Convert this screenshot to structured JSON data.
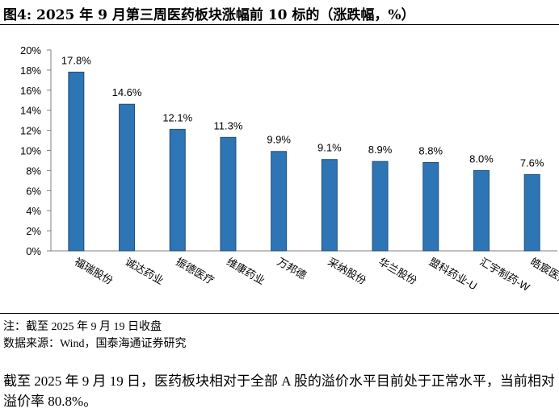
{
  "title": "图4:  2025 年 9 月第三周医药板块涨幅前 10 标的（涨跌幅，%）",
  "chart_data": {
    "type": "bar",
    "categories": [
      "福瑞股份",
      "诚达药业",
      "振德医疗",
      "维康药业",
      "万邦德",
      "采纳股份",
      "华兰股份",
      "盟科药业-U",
      "汇宇制药-W",
      "皓宸医疗"
    ],
    "values": [
      17.8,
      14.6,
      12.1,
      11.3,
      9.9,
      9.1,
      8.9,
      8.8,
      8.0,
      7.6
    ],
    "value_labels": [
      "17.8%",
      "14.6%",
      "12.1%",
      "11.3%",
      "9.9%",
      "9.1%",
      "8.9%",
      "8.8%",
      "8.0%",
      "7.6%"
    ],
    "color": "#2e75b6",
    "ylim": [
      0,
      20
    ],
    "yticks": [
      {
        "value": 0,
        "label": "0%"
      },
      {
        "value": 2,
        "label": "2%"
      },
      {
        "value": 4,
        "label": "4%"
      },
      {
        "value": 6,
        "label": "6%"
      },
      {
        "value": 8,
        "label": "8%"
      },
      {
        "value": 10,
        "label": "10%"
      },
      {
        "value": 12,
        "label": "12%"
      },
      {
        "value": 14,
        "label": "14%"
      },
      {
        "value": 16,
        "label": "16%"
      },
      {
        "value": 18,
        "label": "18%"
      },
      {
        "value": 20,
        "label": "20%"
      }
    ],
    "grid": false
  },
  "notes": [
    "注：截至 2025 年 9 月 19 日收盘",
    "数据来源：Wind，国泰海通证券研究"
  ],
  "paragraph": "截至 2025 年 9 月 19 日，医药板块相对于全部 A 股的溢价水平目前处于正常水平，当前相对溢价率 80.8%。"
}
